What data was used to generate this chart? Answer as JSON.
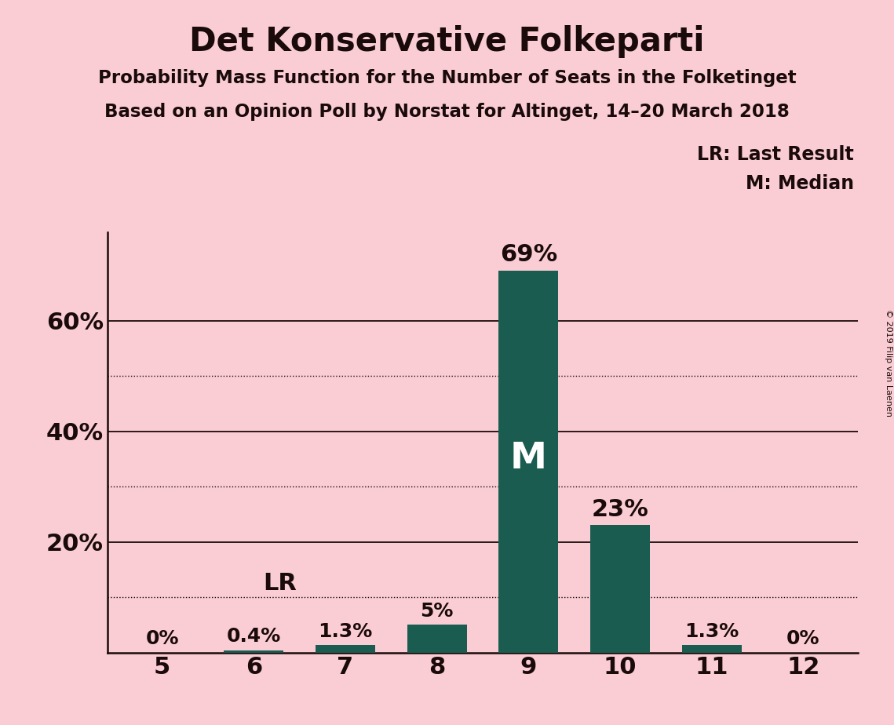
{
  "title": "Det Konservative Folkeparti",
  "subtitle1": "Probability Mass Function for the Number of Seats in the Folketinget",
  "subtitle2": "Based on an Opinion Poll by Norstat for Altinget, 14–20 March 2018",
  "copyright": "© 2019 Filip van Laenen",
  "categories": [
    5,
    6,
    7,
    8,
    9,
    10,
    11,
    12
  ],
  "values": [
    0.0,
    0.4,
    1.3,
    5.0,
    69.0,
    23.0,
    1.3,
    0.0
  ],
  "bar_color": "#1a5c50",
  "background_color": "#f9cdd3",
  "text_color": "#1a0a0a",
  "dotted_lines": [
    10,
    30,
    50
  ],
  "solid_lines": [
    20,
    40,
    60
  ],
  "ylim": [
    0,
    76
  ],
  "median_seat": 9,
  "lr_seat": 6,
  "legend_lr": "LR: Last Result",
  "legend_m": "M: Median",
  "bar_labels": [
    "0%",
    "0.4%",
    "1.3%",
    "5%",
    "69%",
    "23%",
    "1.3%",
    "0%"
  ],
  "bar_label_sizes": [
    18,
    18,
    18,
    18,
    22,
    22,
    18,
    18
  ]
}
